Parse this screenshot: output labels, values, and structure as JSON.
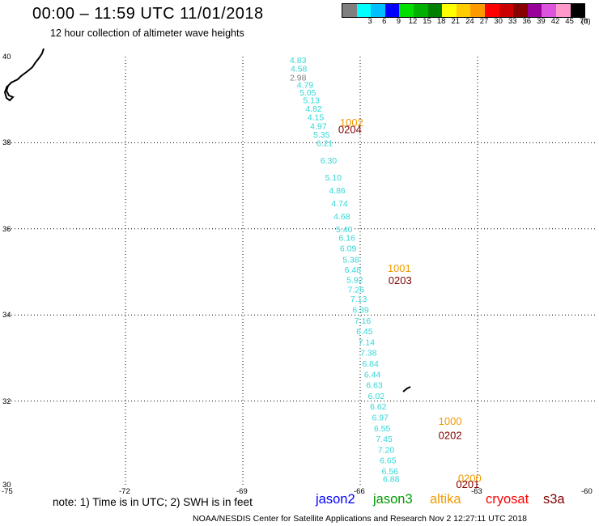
{
  "header": {
    "title": "00:00 – 11:59 UTC 11/01/2018",
    "subtitle": "12 hour collection of altimeter wave heights"
  },
  "colorbar": {
    "colors": [
      "#7f7f7f",
      "#00ffff",
      "#00bfff",
      "#0000ff",
      "#00e000",
      "#00b000",
      "#008000",
      "#ffff00",
      "#ffcc00",
      "#ff9900",
      "#ff0000",
      "#cc0000",
      "#880000",
      "#990099",
      "#dd55dd",
      "#ff99cc",
      "#000000"
    ],
    "labels": [
      "3",
      "6",
      "9",
      "12",
      "15",
      "18",
      "21",
      "24",
      "27",
      "30",
      "33",
      "36",
      "39",
      "42",
      "45",
      "70"
    ],
    "unit": "(ft)"
  },
  "map": {
    "lat_labels": [
      "40",
      "38",
      "36",
      "34",
      "32",
      "30"
    ],
    "lon_labels": [
      "-75",
      "-72",
      "-69",
      "-66",
      "-63",
      "-60"
    ],
    "pass_color": "#33d6d6",
    "annotations": [
      {
        "text": "1002",
        "color": "#f29a00",
        "lon": -66.52,
        "lat": 38.38
      },
      {
        "text": "0204",
        "color": "#800000",
        "lon": -66.56,
        "lat": 38.22
      },
      {
        "text": "1001",
        "color": "#f29a00",
        "lon": -65.3,
        "lat": 35.0
      },
      {
        "text": "0203",
        "color": "#800000",
        "lon": -65.28,
        "lat": 34.72
      },
      {
        "text": "1000",
        "color": "#f29a00",
        "lon": -64.0,
        "lat": 31.45
      },
      {
        "text": "0202",
        "color": "#800000",
        "lon": -64.0,
        "lat": 31.12
      },
      {
        "text": "0200",
        "color": "#f29a00",
        "lon": -63.5,
        "lat": 30.12
      },
      {
        "text": "0201",
        "color": "#800000",
        "lon": -63.55,
        "lat": 29.98
      }
    ],
    "swh_labels": [
      {
        "text": "4.83",
        "lon": -67.8,
        "lat": 39.85,
        "color": "#33d6d6"
      },
      {
        "text": "4.58",
        "lon": -67.78,
        "lat": 39.65,
        "color": "#33d6d6"
      },
      {
        "text": "2.98",
        "lon": -67.8,
        "lat": 39.45,
        "color": "#7f7f7f"
      },
      {
        "text": "4.79",
        "lon": -67.62,
        "lat": 39.28,
        "color": "#33d6d6"
      },
      {
        "text": "5.05",
        "lon": -67.55,
        "lat": 39.1,
        "color": "#33d6d6"
      },
      {
        "text": "5.13",
        "lon": -67.46,
        "lat": 38.92,
        "color": "#33d6d6"
      },
      {
        "text": "4.82",
        "lon": -67.4,
        "lat": 38.72,
        "color": "#33d6d6"
      },
      {
        "text": "4.15",
        "lon": -67.35,
        "lat": 38.52,
        "color": "#33d6d6"
      },
      {
        "text": "4.97",
        "lon": -67.28,
        "lat": 38.32,
        "color": "#33d6d6"
      },
      {
        "text": "5.35",
        "lon": -67.2,
        "lat": 38.12,
        "color": "#33d6d6"
      },
      {
        "text": "6.21",
        "lon": -67.12,
        "lat": 37.92,
        "color": "#33d6d6"
      },
      {
        "text": "6.30",
        "lon": -67.02,
        "lat": 37.52,
        "color": "#33d6d6"
      },
      {
        "text": "5.10",
        "lon": -66.9,
        "lat": 37.12,
        "color": "#33d6d6"
      },
      {
        "text": "4.86",
        "lon": -66.8,
        "lat": 36.82,
        "color": "#33d6d6"
      },
      {
        "text": "4.74",
        "lon": -66.74,
        "lat": 36.52,
        "color": "#33d6d6"
      },
      {
        "text": "4.68",
        "lon": -66.68,
        "lat": 36.22,
        "color": "#33d6d6"
      },
      {
        "text": "5.40",
        "lon": -66.62,
        "lat": 35.92,
        "color": "#33d6d6"
      },
      {
        "text": "6.16",
        "lon": -66.55,
        "lat": 35.72,
        "color": "#33d6d6"
      },
      {
        "text": "6.09",
        "lon": -66.52,
        "lat": 35.48,
        "color": "#33d6d6"
      },
      {
        "text": "5.38",
        "lon": -66.45,
        "lat": 35.22,
        "color": "#33d6d6"
      },
      {
        "text": "6.48",
        "lon": -66.4,
        "lat": 34.98,
        "color": "#33d6d6"
      },
      {
        "text": "5.92",
        "lon": -66.35,
        "lat": 34.75,
        "color": "#33d6d6"
      },
      {
        "text": "7.26",
        "lon": -66.32,
        "lat": 34.52,
        "color": "#33d6d6"
      },
      {
        "text": "7.13",
        "lon": -66.25,
        "lat": 34.3,
        "color": "#33d6d6"
      },
      {
        "text": "6.39",
        "lon": -66.2,
        "lat": 34.05,
        "color": "#33d6d6"
      },
      {
        "text": "7.16",
        "lon": -66.15,
        "lat": 33.8,
        "color": "#33d6d6"
      },
      {
        "text": "6.45",
        "lon": -66.1,
        "lat": 33.55,
        "color": "#33d6d6"
      },
      {
        "text": "7.14",
        "lon": -66.05,
        "lat": 33.3,
        "color": "#33d6d6"
      },
      {
        "text": "7.38",
        "lon": -66.0,
        "lat": 33.05,
        "color": "#33d6d6"
      },
      {
        "text": "6.84",
        "lon": -65.95,
        "lat": 32.8,
        "color": "#33d6d6"
      },
      {
        "text": "6.44",
        "lon": -65.9,
        "lat": 32.55,
        "color": "#33d6d6"
      },
      {
        "text": "6.63",
        "lon": -65.85,
        "lat": 32.3,
        "color": "#33d6d6"
      },
      {
        "text": "6.02",
        "lon": -65.8,
        "lat": 32.05,
        "color": "#33d6d6"
      },
      {
        "text": "6.62",
        "lon": -65.75,
        "lat": 31.8,
        "color": "#33d6d6"
      },
      {
        "text": "6.97",
        "lon": -65.7,
        "lat": 31.55,
        "color": "#33d6d6"
      },
      {
        "text": "6.55",
        "lon": -65.65,
        "lat": 31.3,
        "color": "#33d6d6"
      },
      {
        "text": "7.45",
        "lon": -65.6,
        "lat": 31.05,
        "color": "#33d6d6"
      },
      {
        "text": "7.20",
        "lon": -65.55,
        "lat": 30.8,
        "color": "#33d6d6"
      },
      {
        "text": "6.65",
        "lon": -65.5,
        "lat": 30.55,
        "color": "#33d6d6"
      },
      {
        "text": "6.56",
        "lon": -65.45,
        "lat": 30.3,
        "color": "#33d6d6"
      },
      {
        "text": "6.88",
        "lon": -65.42,
        "lat": 30.12,
        "color": "#33d6d6"
      }
    ]
  },
  "legend": {
    "note": "note:  1) Time is in UTC;  2) SWH is in feet",
    "satellites": [
      {
        "name": "jason2",
        "color": "#0000ff"
      },
      {
        "name": "jason3",
        "color": "#009900"
      },
      {
        "name": "altika",
        "color": "#f29a00"
      },
      {
        "name": "cryosat",
        "color": "#ff0000"
      },
      {
        "name": "s3a",
        "color": "#800000"
      }
    ]
  },
  "footer": "NOAA/NESDIS Center for Satellite Applications and Research     Nov  2 12:27:11 UTC 2018"
}
